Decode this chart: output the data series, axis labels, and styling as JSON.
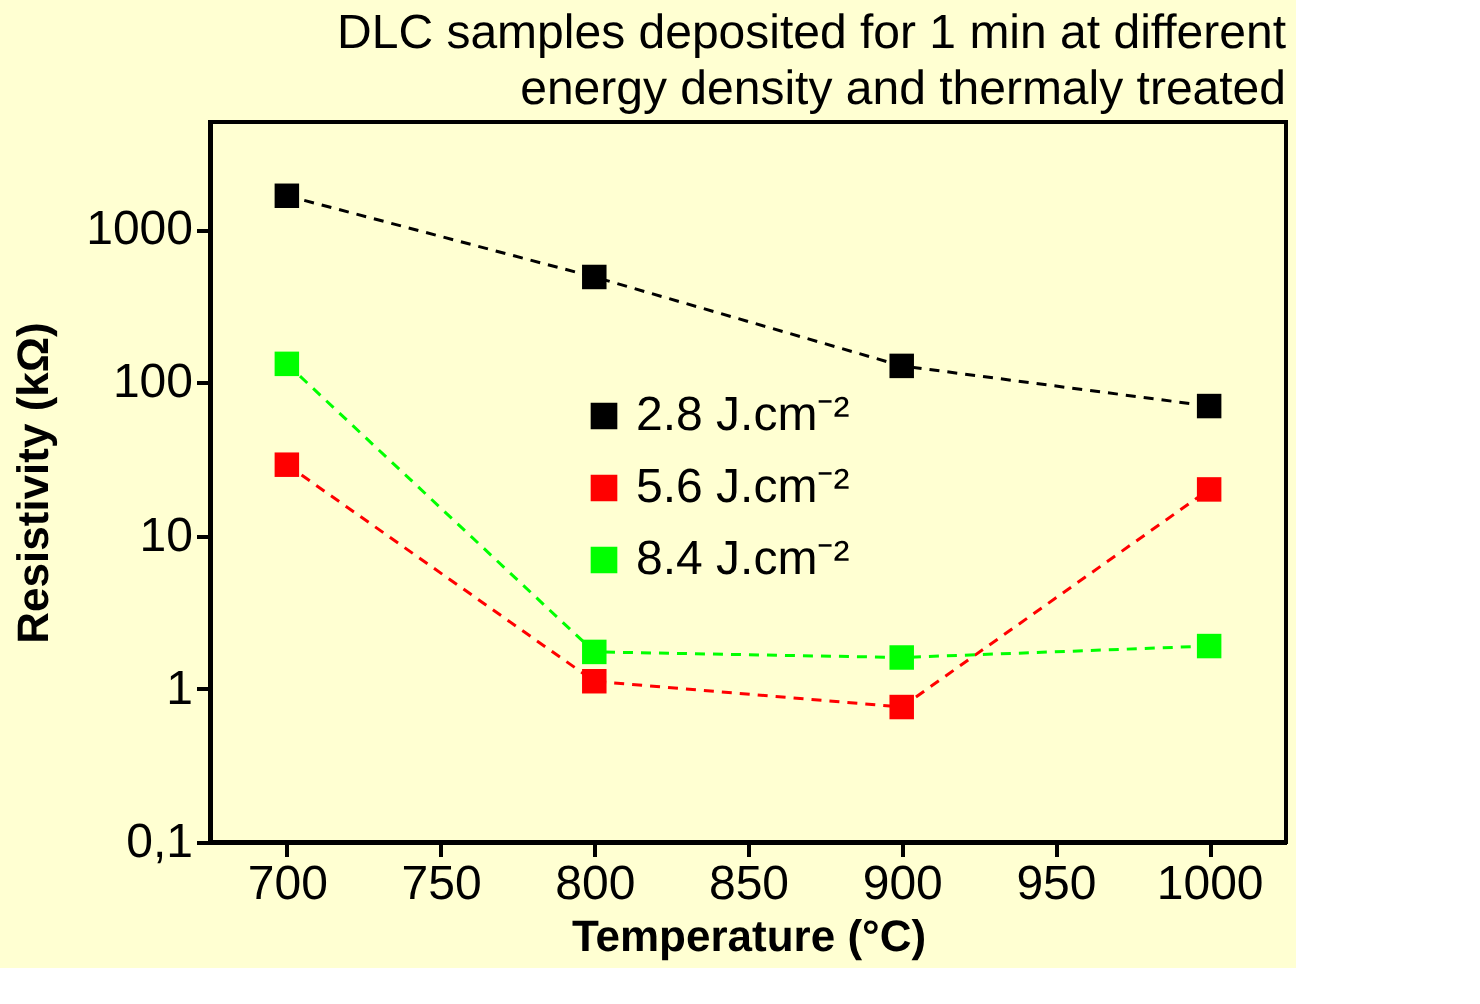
{
  "chart_data": {
    "type": "line",
    "title": "DLC samples deposited for 1 min at different\nenergy density and thermaly treated",
    "xlabel": "Temperature (°C)",
    "ylabel": "Resistivity (kΩ)",
    "x": [
      700,
      800,
      900,
      1000
    ],
    "series": [
      {
        "name": "2.8 J.cm⁻²",
        "color": "#000000",
        "values": [
          1650,
          487,
          128,
          70
        ]
      },
      {
        "name": "5.6 J.cm⁻²",
        "color": "#ff0000",
        "values": [
          29,
          1.12,
          0.76,
          20
        ]
      },
      {
        "name": "8.4 J.cm⁻²",
        "color": "#00ff00",
        "values": [
          132,
          1.74,
          1.6,
          1.9
        ]
      }
    ],
    "xlim": [
      675,
      1025
    ],
    "xticks": [
      700,
      750,
      800,
      850,
      900,
      950,
      1000
    ],
    "ylim": [
      0.1,
      5000
    ],
    "yticks": [
      {
        "value": 0.1,
        "label": "0,1"
      },
      1,
      10,
      100,
      1000
    ],
    "log": "y",
    "grid": false,
    "legend": "center",
    "marker": "square",
    "line_style": "dashed"
  }
}
